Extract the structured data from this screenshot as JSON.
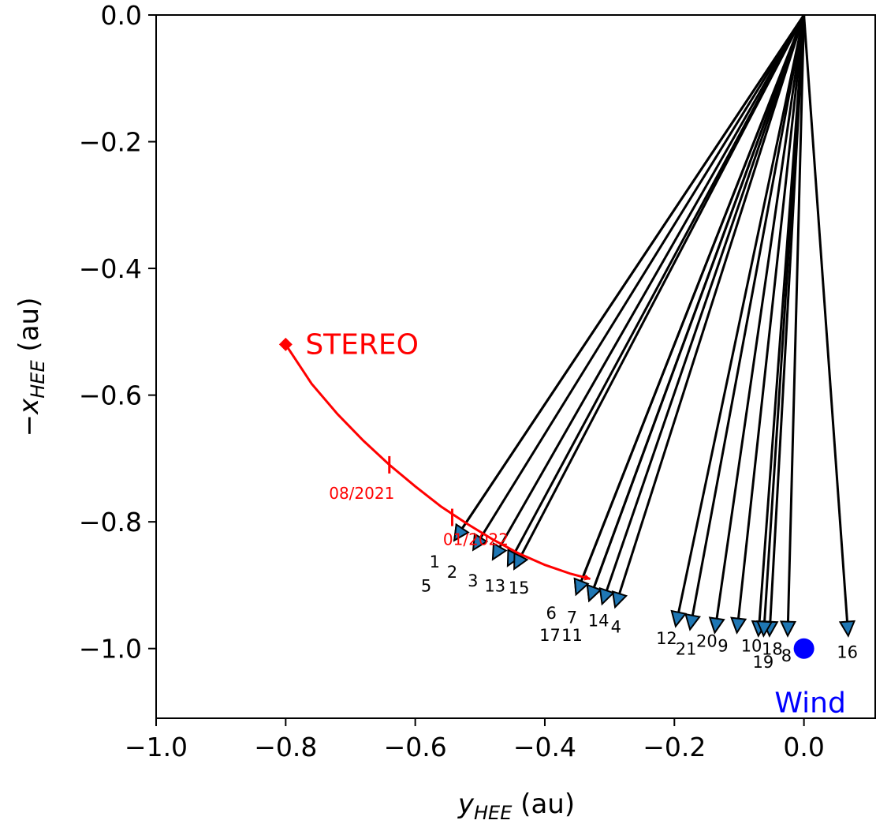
{
  "chart_data": {
    "type": "scatter",
    "xlabel_main": "y",
    "xlabel_sub": "HEE",
    "xlabel_unit": " (au)",
    "ylabel_prefix": "−x",
    "ylabel_sub": "HEE",
    "ylabel_unit": " (au)",
    "xlim": [
      -1.0,
      0.11
    ],
    "ylim": [
      -1.11,
      0.0
    ],
    "xticks": [
      -1.0,
      -0.8,
      -0.6,
      -0.4,
      -0.2,
      0.0
    ],
    "xtick_labels": [
      "−1.0",
      "−0.8",
      "−0.6",
      "−0.4",
      "−0.2",
      "0.0"
    ],
    "yticks": [
      0.0,
      -0.2,
      -0.4,
      -0.6,
      -0.8,
      -1.0
    ],
    "ytick_labels": [
      "0.0",
      "−0.2",
      "−0.4",
      "−0.6",
      "−0.8",
      "−1.0"
    ],
    "grid": false,
    "origin": [
      0.0,
      0.0
    ],
    "events": [
      {
        "id": "1",
        "x": -0.537,
        "y": -0.825
      },
      {
        "id": "2",
        "x": -0.508,
        "y": -0.84
      },
      {
        "id": "3",
        "x": -0.478,
        "y": -0.855
      },
      {
        "id": "4",
        "x": -0.29,
        "y": -0.93
      },
      {
        "id": "5",
        "x": -0.537,
        "y": -0.825
      },
      {
        "id": "6",
        "x": -0.35,
        "y": -0.91
      },
      {
        "id": "7",
        "x": -0.33,
        "y": -0.92
      },
      {
        "id": "8",
        "x": -0.025,
        "y": -0.975
      },
      {
        "id": "9",
        "x": -0.137,
        "y": -0.97
      },
      {
        "id": "10",
        "x": -0.07,
        "y": -0.975
      },
      {
        "id": "11",
        "x": -0.33,
        "y": -0.92
      },
      {
        "id": "12",
        "x": -0.197,
        "y": -0.96
      },
      {
        "id": "13",
        "x": -0.455,
        "y": -0.865
      },
      {
        "id": "14",
        "x": -0.31,
        "y": -0.925
      },
      {
        "id": "15",
        "x": -0.445,
        "y": -0.87
      },
      {
        "id": "16",
        "x": 0.068,
        "y": -0.975
      },
      {
        "id": "17",
        "x": -0.35,
        "y": -0.91
      },
      {
        "id": "18",
        "x": -0.053,
        "y": -0.975
      },
      {
        "id": "19",
        "x": -0.062,
        "y": -0.975
      },
      {
        "id": "20",
        "x": -0.103,
        "y": -0.97
      },
      {
        "id": "21",
        "x": -0.175,
        "y": -0.965
      }
    ],
    "event_labels": [
      {
        "text": "1",
        "x": -0.57,
        "y": -0.872
      },
      {
        "text": "2",
        "x": -0.543,
        "y": -0.888
      },
      {
        "text": "3",
        "x": -0.511,
        "y": -0.902
      },
      {
        "text": "13",
        "x": -0.477,
        "y": -0.91
      },
      {
        "text": "15",
        "x": -0.44,
        "y": -0.913
      },
      {
        "text": "5",
        "x": -0.583,
        "y": -0.91
      },
      {
        "text": "6",
        "x": -0.39,
        "y": -0.953
      },
      {
        "text": "7",
        "x": -0.358,
        "y": -0.96
      },
      {
        "text": "14",
        "x": -0.317,
        "y": -0.965
      },
      {
        "text": "4",
        "x": -0.29,
        "y": -0.975
      },
      {
        "text": "17",
        "x": -0.392,
        "y": -0.988
      },
      {
        "text": "11",
        "x": -0.358,
        "y": -0.988
      },
      {
        "text": "12",
        "x": -0.212,
        "y": -0.993
      },
      {
        "text": "21",
        "x": -0.182,
        "y": -1.01
      },
      {
        "text": "20",
        "x": -0.15,
        "y": -0.997
      },
      {
        "text": "9",
        "x": -0.125,
        "y": -1.005
      },
      {
        "text": "10",
        "x": -0.081,
        "y": -1.005
      },
      {
        "text": "18",
        "x": -0.049,
        "y": -1.01
      },
      {
        "text": "19",
        "x": -0.063,
        "y": -1.03
      },
      {
        "text": "8",
        "x": -0.027,
        "y": -1.02
      },
      {
        "text": "16",
        "x": 0.067,
        "y": -1.015
      }
    ],
    "stereo": {
      "label": "STEREO",
      "color": "#ff0000",
      "start": [
        -0.8,
        -0.52
      ],
      "end": [
        -0.33,
        -0.89
      ],
      "path": [
        [
          -0.8,
          -0.52
        ],
        [
          -0.76,
          -0.582
        ],
        [
          -0.72,
          -0.63
        ],
        [
          -0.68,
          -0.672
        ],
        [
          -0.64,
          -0.71
        ],
        [
          -0.6,
          -0.744
        ],
        [
          -0.56,
          -0.776
        ],
        [
          -0.52,
          -0.803
        ],
        [
          -0.48,
          -0.828
        ],
        [
          -0.44,
          -0.85
        ],
        [
          -0.4,
          -0.868
        ],
        [
          -0.36,
          -0.882
        ],
        [
          -0.33,
          -0.89
        ]
      ],
      "date_ticks": [
        {
          "label": "08/2021",
          "x": -0.64,
          "y": -0.71
        },
        {
          "label": "01/2022",
          "x": -0.543,
          "y": -0.793
        }
      ]
    },
    "wind": {
      "label": "Wind",
      "color": "#0000ff",
      "x": 0.0,
      "y": -1.0
    },
    "arrow_color": "#000000",
    "marker_color": "#1f77b4"
  }
}
